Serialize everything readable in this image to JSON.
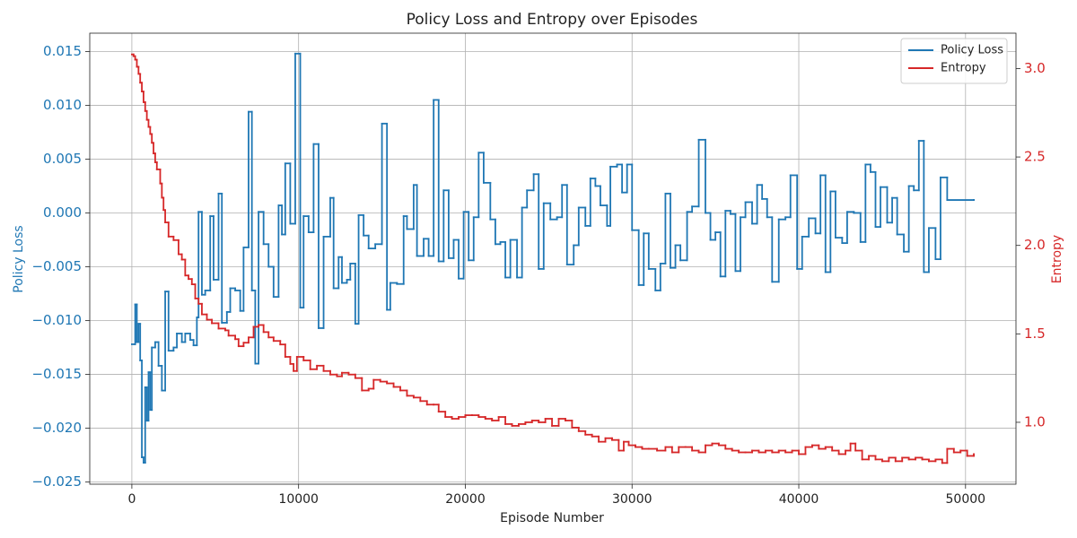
{
  "chart_data": {
    "type": "line",
    "drawstyle": "steps-post",
    "title": "Policy Loss and Entropy over Episodes",
    "x_label": "Episode Number",
    "y_label": "Policy Loss",
    "y2_label": "Entropy",
    "xlim": [
      -2525,
      53025
    ],
    "xticks": [
      0,
      10000,
      20000,
      30000,
      40000,
      50000
    ],
    "ylim": [
      -0.0252,
      0.0167
    ],
    "yticks": [
      {
        "value": -0.025,
        "label": "−0.025"
      },
      {
        "value": -0.02,
        "label": "−0.020"
      },
      {
        "value": -0.015,
        "label": "−0.015"
      },
      {
        "value": -0.01,
        "label": "−0.010"
      },
      {
        "value": -0.005,
        "label": "−0.005"
      },
      {
        "value": 0,
        "label": "0.000"
      },
      0.005,
      {
        "value": 0.01,
        "label": "0.010"
      },
      0.015
    ],
    "y2lim": [
      0.65,
      3.2
    ],
    "y2ticks": [
      {
        "value": 1,
        "label": "1.0"
      },
      1.5,
      {
        "value": 2,
        "label": "2.0"
      },
      2.5,
      {
        "value": 3,
        "label": "3.0"
      }
    ],
    "grid": true,
    "legend": "upper right",
    "series": [
      {
        "name": "Policy Loss",
        "color": "#1f77b4",
        "axis": "y",
        "x": [
          0,
          200,
          300,
          400,
          500,
          600,
          700,
          800,
          900,
          1000,
          1100,
          1200,
          1400,
          1600,
          1800,
          2000,
          2200,
          2500,
          2700,
          3000,
          3200,
          3500,
          3700,
          3900,
          4000,
          4200,
          4400,
          4700,
          4900,
          5200,
          5400,
          5700,
          5900,
          6200,
          6500,
          6700,
          7000,
          7200,
          7400,
          7600,
          7900,
          8200,
          8500,
          8800,
          9000,
          9200,
          9500,
          9800,
          10100,
          10300,
          10600,
          10900,
          11200,
          11500,
          11900,
          12100,
          12400,
          12600,
          12900,
          13100,
          13400,
          13600,
          13900,
          14200,
          14600,
          15000,
          15300,
          15500,
          15900,
          16300,
          16500,
          16900,
          17100,
          17500,
          17800,
          18100,
          18400,
          18700,
          19000,
          19300,
          19600,
          19900,
          20200,
          20500,
          20800,
          21100,
          21500,
          21800,
          22100,
          22400,
          22700,
          23100,
          23400,
          23700,
          24100,
          24400,
          24700,
          25100,
          25500,
          25800,
          26100,
          26500,
          26800,
          27200,
          27500,
          27800,
          28100,
          28500,
          28700,
          29100,
          29400,
          29700,
          30000,
          30400,
          30700,
          31000,
          31400,
          31700,
          32000,
          32300,
          32600,
          32900,
          33300,
          33600,
          34000,
          34400,
          34700,
          35000,
          35300,
          35600,
          35900,
          36200,
          36500,
          36800,
          37200,
          37500,
          37800,
          38100,
          38400,
          38800,
          39200,
          39500,
          39900,
          40200,
          40600,
          41000,
          41300,
          41600,
          41900,
          42200,
          42600,
          42900,
          43300,
          43700,
          44000,
          44300,
          44600,
          44900,
          45300,
          45600,
          45900,
          46300,
          46600,
          46900,
          47200,
          47500,
          47800,
          48200,
          48500,
          48900,
          50500
        ],
        "values": [
          -0.0122,
          -0.0085,
          -0.012,
          -0.0103,
          -0.0137,
          -0.0227,
          -0.0232,
          -0.0162,
          -0.0193,
          -0.0148,
          -0.0183,
          -0.0125,
          -0.012,
          -0.0142,
          -0.0165,
          -0.0073,
          -0.0128,
          -0.0125,
          -0.0112,
          -0.012,
          -0.0112,
          -0.0118,
          -0.0123,
          -0.0097,
          0.0001,
          -0.0076,
          -0.0072,
          -0.0003,
          -0.0062,
          0.0018,
          -0.0102,
          -0.0092,
          -0.007,
          -0.0072,
          -0.0091,
          -0.0032,
          0.0094,
          -0.0072,
          -0.014,
          0.0001,
          -0.0029,
          -0.005,
          -0.0078,
          0.0007,
          -0.002,
          0.0046,
          -0.001,
          0.0148,
          -0.0088,
          -0.0003,
          -0.0018,
          0.0064,
          -0.0107,
          -0.0022,
          0.0014,
          -0.007,
          -0.0041,
          -0.0065,
          -0.0062,
          -0.0047,
          -0.0103,
          -0.0002,
          -0.0021,
          -0.0033,
          -0.0029,
          0.0083,
          -0.009,
          -0.0065,
          -0.0066,
          -0.0003,
          -0.0015,
          0.0026,
          -0.004,
          -0.0024,
          -0.004,
          0.0105,
          -0.0045,
          0.0021,
          -0.0042,
          -0.0025,
          -0.0061,
          0.0001,
          -0.0044,
          -0.0004,
          0.0056,
          0.0028,
          -0.0006,
          -0.0029,
          -0.0027,
          -0.006,
          -0.0025,
          -0.006,
          0.0005,
          0.0021,
          0.0036,
          -0.0052,
          0.0009,
          -0.0006,
          -0.0004,
          0.0026,
          -0.0048,
          -0.003,
          0.0005,
          -0.0012,
          0.0032,
          0.0025,
          0.0007,
          -0.0012,
          0.0043,
          0.0045,
          0.0019,
          0.0045,
          -0.0016,
          -0.0067,
          -0.0019,
          -0.0052,
          -0.0072,
          -0.0047,
          0.0018,
          -0.0051,
          -0.003,
          -0.0044,
          0.0001,
          0.0006,
          0.0068,
          0.0,
          -0.0025,
          -0.0018,
          -0.0059,
          0.0002,
          -0.0001,
          -0.0054,
          -0.0004,
          0.001,
          -0.001,
          0.0026,
          0.0013,
          -0.0004,
          -0.0064,
          -0.0006,
          -0.0004,
          0.0035,
          -0.0052,
          -0.0022,
          -0.0005,
          -0.0019,
          0.0035,
          -0.0055,
          0.002,
          -0.0023,
          -0.0028,
          0.0001,
          0.0,
          -0.0027,
          0.0045,
          0.0038,
          -0.0013,
          0.0024,
          -0.0009,
          0.0014,
          -0.002,
          -0.0036,
          0.0025,
          0.0021,
          0.0067,
          -0.0055,
          -0.0014,
          -0.0043,
          0.0033,
          0.0012,
          0.0012
        ]
      },
      {
        "name": "Entropy",
        "color": "#d62728",
        "axis": "y2",
        "x": [
          0,
          100,
          200,
          300,
          400,
          500,
          600,
          700,
          800,
          900,
          1000,
          1100,
          1200,
          1300,
          1400,
          1500,
          1700,
          1800,
          1900,
          2000,
          2200,
          2500,
          2800,
          3000,
          3200,
          3400,
          3600,
          3800,
          4000,
          4200,
          4500,
          4800,
          5200,
          5600,
          5800,
          6200,
          6400,
          6700,
          7000,
          7300,
          7600,
          7900,
          8200,
          8500,
          8900,
          9200,
          9500,
          9700,
          9900,
          10300,
          10700,
          11100,
          11500,
          11900,
          12300,
          12600,
          13000,
          13400,
          13800,
          14200,
          14500,
          14900,
          15300,
          15700,
          16100,
          16500,
          16900,
          17300,
          17700,
          18100,
          18400,
          18800,
          19200,
          19600,
          20000,
          20400,
          20800,
          21200,
          21600,
          22000,
          22400,
          22800,
          23200,
          23600,
          24000,
          24400,
          24800,
          25200,
          25600,
          26000,
          26400,
          26800,
          27200,
          27600,
          28000,
          28400,
          28800,
          29200,
          29500,
          29800,
          30200,
          30600,
          31000,
          31500,
          32000,
          32400,
          32800,
          33200,
          33600,
          34000,
          34400,
          34800,
          35200,
          35600,
          36000,
          36400,
          36800,
          37200,
          37600,
          38000,
          38400,
          38800,
          39200,
          39600,
          40000,
          40400,
          40800,
          41200,
          41600,
          42000,
          42400,
          42800,
          43100,
          43400,
          43800,
          44200,
          44600,
          45000,
          45400,
          45800,
          46200,
          46600,
          47000,
          47400,
          47800,
          48200,
          48600,
          48900,
          49300,
          49700,
          50100,
          50500
        ],
        "values": [
          3.08,
          3.07,
          3.05,
          3.01,
          2.97,
          2.92,
          2.87,
          2.81,
          2.76,
          2.71,
          2.67,
          2.63,
          2.58,
          2.52,
          2.47,
          2.43,
          2.35,
          2.27,
          2.2,
          2.13,
          2.05,
          2.03,
          1.95,
          1.92,
          1.83,
          1.81,
          1.78,
          1.7,
          1.67,
          1.61,
          1.58,
          1.56,
          1.53,
          1.52,
          1.49,
          1.47,
          1.43,
          1.45,
          1.48,
          1.54,
          1.55,
          1.51,
          1.48,
          1.46,
          1.44,
          1.37,
          1.33,
          1.29,
          1.37,
          1.35,
          1.3,
          1.32,
          1.29,
          1.27,
          1.26,
          1.28,
          1.27,
          1.25,
          1.18,
          1.19,
          1.24,
          1.23,
          1.22,
          1.2,
          1.18,
          1.15,
          1.14,
          1.12,
          1.1,
          1.1,
          1.06,
          1.03,
          1.02,
          1.03,
          1.04,
          1.04,
          1.03,
          1.02,
          1.01,
          1.03,
          0.99,
          0.98,
          0.99,
          1.0,
          1.01,
          1.0,
          1.02,
          0.98,
          1.02,
          1.01,
          0.97,
          0.95,
          0.93,
          0.92,
          0.89,
          0.91,
          0.9,
          0.84,
          0.89,
          0.87,
          0.86,
          0.85,
          0.85,
          0.84,
          0.86,
          0.83,
          0.86,
          0.86,
          0.84,
          0.83,
          0.87,
          0.88,
          0.87,
          0.85,
          0.84,
          0.83,
          0.83,
          0.84,
          0.83,
          0.84,
          0.83,
          0.84,
          0.83,
          0.84,
          0.82,
          0.86,
          0.87,
          0.85,
          0.86,
          0.84,
          0.82,
          0.84,
          0.88,
          0.84,
          0.79,
          0.81,
          0.79,
          0.78,
          0.8,
          0.78,
          0.8,
          0.79,
          0.8,
          0.79,
          0.78,
          0.79,
          0.77,
          0.85,
          0.83,
          0.84,
          0.81,
          0.82
        ]
      }
    ]
  }
}
